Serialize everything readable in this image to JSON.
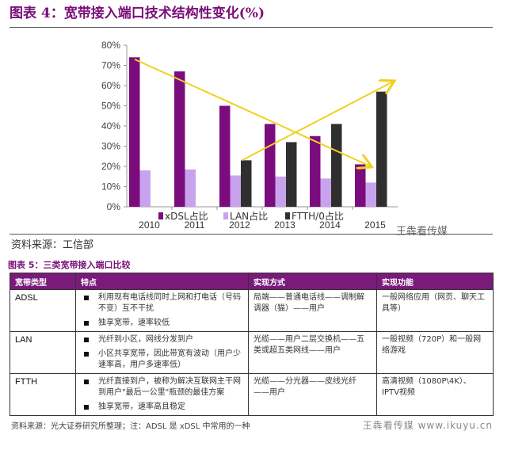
{
  "figure4": {
    "title": "图表 4：宽带接入端口技术结构性变化(%)",
    "source": "资料来源：工信部",
    "watermark": "王犇看传媒"
  },
  "chart_data": {
    "type": "bar",
    "title": "图表 4：宽带接入端口技术结构性变化(%)",
    "categories": [
      "2010",
      "2011",
      "2012",
      "2013",
      "2014",
      "2015"
    ],
    "y_ticks": [
      "0%",
      "10%",
      "20%",
      "30%",
      "40%",
      "50%",
      "60%",
      "70%",
      "80%"
    ],
    "ylim": [
      0,
      80
    ],
    "series": [
      {
        "name": "xDSL占比",
        "color": "#7b0c7d",
        "values": [
          74,
          67,
          50,
          41,
          35,
          21
        ]
      },
      {
        "name": "LAN占比",
        "color": "#c9a2ee",
        "values": [
          18,
          18.5,
          15.5,
          15,
          14,
          12
        ]
      },
      {
        "name": "FTTH/0占比",
        "color": "#2f2f2f",
        "values": [
          null,
          null,
          23,
          32,
          41,
          57
        ]
      }
    ],
    "annotations": [
      {
        "type": "arrow",
        "color": "#f0d020",
        "from": [
          "2010",
          73
        ],
        "to": [
          "2015",
          20
        ]
      },
      {
        "type": "arrow",
        "color": "#f0d020",
        "from": [
          "2012",
          23
        ],
        "to": [
          "2015",
          62
        ]
      }
    ],
    "legend": "bottom"
  },
  "figure5": {
    "title": "图表 5：三类宽带接入端口比较",
    "headers": [
      "宽带类型",
      "特点",
      "实现方式",
      "实现功能"
    ],
    "rows": [
      {
        "type": "ADSL",
        "features": [
          "利用现有电话线同时上网和打电话（号码不变）互不干扰",
          "独享宽带，速率较低"
        ],
        "method": "局端——普通电话线——调制解调器（猫）——用户",
        "function": "一般网络应用（网页、聊天工具等）"
      },
      {
        "type": "LAN",
        "features": [
          "光纤到小区，网线分发到户",
          "小区共享宽带，因此带宽有波动（用户少速率高，用户多速率低）"
        ],
        "method": "光缆——用户二层交换机——五类或超五类网线——用户",
        "function": "一般视频（720P）和一般网络游戏"
      },
      {
        "type": "FTTH",
        "features": [
          "光纤直接到户，被称为解决互联网主干网到用户\"最后一公里\"瓶颈的最佳方案",
          "独享宽带，速率高且稳定"
        ],
        "method": "光缆——分光器——皮线光纤——用户",
        "function": "高清视频（1080P\\4K）、IPTV视频"
      }
    ],
    "source": "资料来源：光大证券研究所整理；注：ADSL 是 xDSL 中常用的一种",
    "watermark": "王犇看传媒 www.ikuyu.cn"
  }
}
